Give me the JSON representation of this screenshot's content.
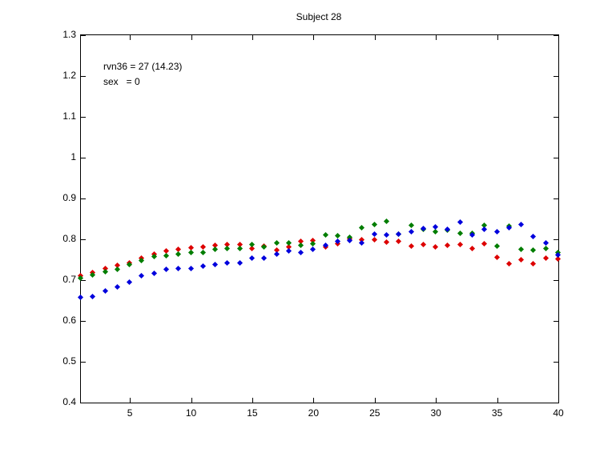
{
  "figure": {
    "background": "#ffffff",
    "axis_color": "#000000"
  },
  "chart_data": {
    "type": "scatter",
    "title": "Subject 28",
    "annotations": [
      "rvn36 = 27 (14.23)",
      "sex   = 0"
    ],
    "xlabel": "",
    "ylabel": "",
    "grid": false,
    "legend": "none",
    "marker": "diamond",
    "xlim": [
      1,
      40
    ],
    "ylim": [
      0.4,
      1.3
    ],
    "x_ticks": [
      5,
      10,
      15,
      20,
      25,
      30,
      35,
      40
    ],
    "x_tick_labels": [
      "5",
      "10",
      "15",
      "20",
      "25",
      "30",
      "35",
      "40"
    ],
    "y_ticks": [
      0.4,
      0.5,
      0.6,
      0.7,
      0.8,
      0.9,
      1.0,
      1.1,
      1.2,
      1.3
    ],
    "y_tick_labels": [
      "0.4",
      "0.5",
      "0.6",
      "0.7",
      "0.8",
      "0.9",
      "1",
      "1.1",
      "1.2",
      "1.3"
    ],
    "x": [
      1,
      2,
      3,
      4,
      5,
      6,
      7,
      8,
      9,
      10,
      11,
      12,
      13,
      14,
      15,
      16,
      17,
      18,
      19,
      20,
      21,
      22,
      23,
      24,
      25,
      26,
      27,
      28,
      29,
      30,
      31,
      32,
      33,
      34,
      35,
      36,
      37,
      38,
      39,
      40
    ],
    "series": [
      {
        "name": "red-series",
        "color": "#dd0000",
        "values": [
          0.71,
          0.717,
          0.728,
          0.735,
          0.742,
          0.752,
          0.763,
          0.771,
          0.775,
          0.778,
          0.781,
          0.784,
          0.786,
          0.786,
          0.777,
          0.783,
          0.773,
          0.781,
          0.795,
          0.797,
          0.781,
          0.789,
          0.8,
          0.799,
          0.799,
          0.793,
          0.794,
          0.783,
          0.786,
          0.78,
          0.784,
          0.786,
          0.776,
          0.789,
          0.755,
          0.739,
          0.75,
          0.74,
          0.752,
          0.751
        ]
      },
      {
        "name": "green-series",
        "color": "#007d00",
        "values": [
          0.704,
          0.712,
          0.72,
          0.726,
          0.738,
          0.748,
          0.756,
          0.759,
          0.762,
          0.767,
          0.767,
          0.775,
          0.777,
          0.776,
          0.786,
          0.78,
          0.791,
          0.791,
          0.784,
          0.788,
          0.81,
          0.807,
          0.803,
          0.827,
          0.835,
          0.843,
          0.811,
          0.833,
          0.823,
          0.817,
          0.821,
          0.813,
          0.814,
          0.834,
          0.783,
          0.831,
          0.775,
          0.772,
          0.777,
          0.766
        ]
      },
      {
        "name": "blue-series",
        "color": "#0000dd",
        "values": [
          0.657,
          0.659,
          0.673,
          0.682,
          0.695,
          0.709,
          0.715,
          0.725,
          0.727,
          0.728,
          0.733,
          0.738,
          0.741,
          0.741,
          0.752,
          0.753,
          0.763,
          0.771,
          0.766,
          0.774,
          0.785,
          0.795,
          0.796,
          0.791,
          0.811,
          0.809,
          0.812,
          0.817,
          0.826,
          0.83,
          0.823,
          0.841,
          0.81,
          0.824,
          0.817,
          0.828,
          0.835,
          0.806,
          0.791,
          0.761
        ]
      }
    ]
  }
}
